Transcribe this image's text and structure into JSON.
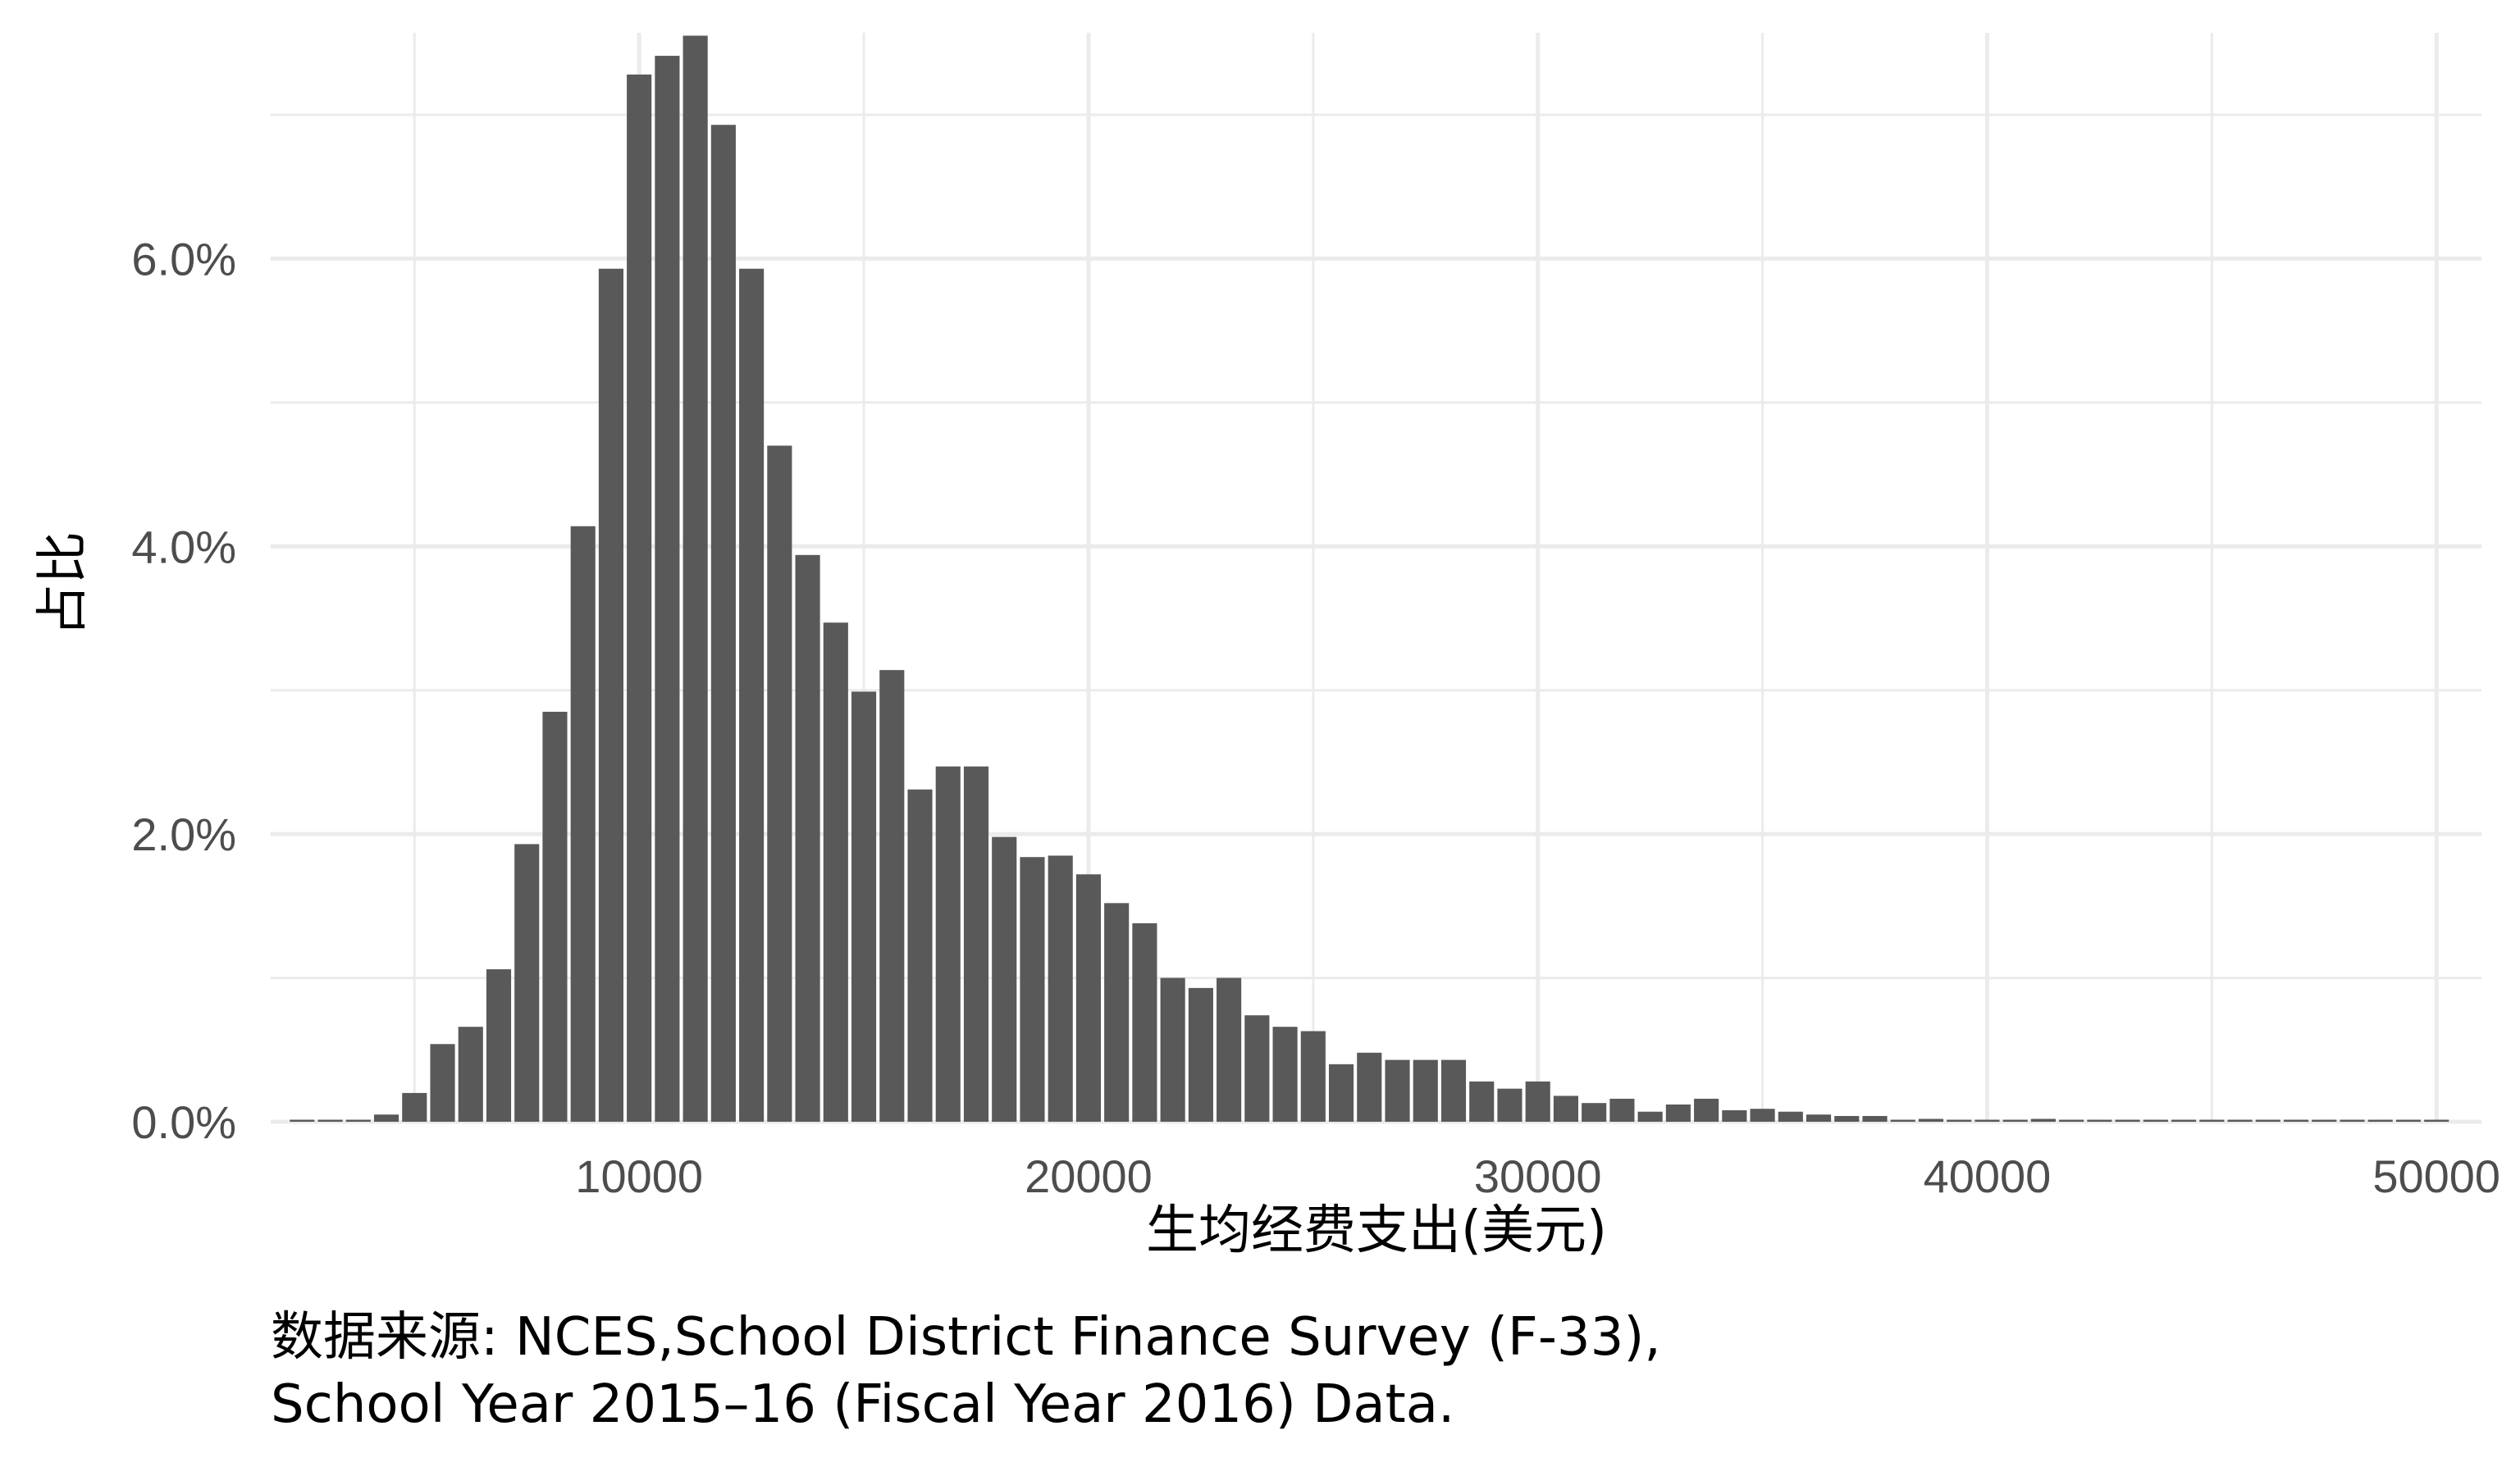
{
  "chart_data": {
    "type": "bar",
    "xlabel": "生均经费支出(美元)",
    "ylabel": "占比",
    "x_ticks": [
      10000,
      20000,
      30000,
      40000,
      50000
    ],
    "y_ticks": [
      0.0,
      0.02,
      0.04,
      0.06
    ],
    "y_tick_labels": [
      "0.0%",
      "2.0%",
      "4.0%",
      "6.0%"
    ],
    "xlim": [
      1800,
      51000
    ],
    "ylim": [
      0,
      0.0757
    ],
    "bin_width": 625,
    "bin_centers": [
      2500,
      3125,
      3750,
      4375,
      5000,
      5625,
      6250,
      6875,
      7500,
      8125,
      8750,
      9375,
      10000,
      10625,
      11250,
      11875,
      12500,
      13125,
      13750,
      14375,
      15000,
      15625,
      16250,
      16875,
      17500,
      18125,
      18750,
      19375,
      20000,
      20625,
      21250,
      21875,
      22500,
      23125,
      23750,
      24375,
      25000,
      25625,
      26250,
      26875,
      27500,
      28125,
      28750,
      29375,
      30000,
      30625,
      31250,
      31875,
      32500,
      33125,
      33750,
      34375,
      35000,
      35625,
      36250,
      36875,
      37500,
      38125,
      38750,
      39375,
      40000,
      40625,
      41250,
      41875,
      42500,
      43125,
      43750,
      44375,
      45000,
      45625,
      46250,
      46875,
      47500,
      48125,
      48750,
      49375,
      50000
    ],
    "values": [
      0.0,
      0.0,
      0.0,
      0.0005,
      0.002,
      0.0054,
      0.0066,
      0.0106,
      0.0193,
      0.0285,
      0.0414,
      0.0593,
      0.0728,
      0.0741,
      0.0755,
      0.0693,
      0.0593,
      0.047,
      0.0394,
      0.0347,
      0.0299,
      0.0314,
      0.0231,
      0.0247,
      0.0247,
      0.0198,
      0.0184,
      0.0185,
      0.0172,
      0.0152,
      0.0138,
      0.01,
      0.0093,
      0.01,
      0.0074,
      0.0066,
      0.0063,
      0.004,
      0.0048,
      0.0043,
      0.0043,
      0.0043,
      0.0028,
      0.0023,
      0.0028,
      0.0018,
      0.0013,
      0.0016,
      0.0007,
      0.0012,
      0.0016,
      0.0008,
      0.0009,
      0.0007,
      0.0005,
      0.0004,
      0.0004,
      0.0,
      0.0002,
      0.0,
      0.0,
      0.0,
      0.0002,
      0.0,
      0.0,
      0.0,
      0.0,
      0.0,
      0.0,
      0.0,
      0.0,
      0.0,
      0.0,
      0.0,
      0.0,
      0.0,
      0.0
    ],
    "bar_color": "#595959",
    "grid": true,
    "grid_color": "#ebebeb",
    "caption": [
      "数据来源: NCES,School District Finance Survey (F-33),",
      "School Year 2015–16 (Fiscal Year 2016) Data."
    ]
  }
}
